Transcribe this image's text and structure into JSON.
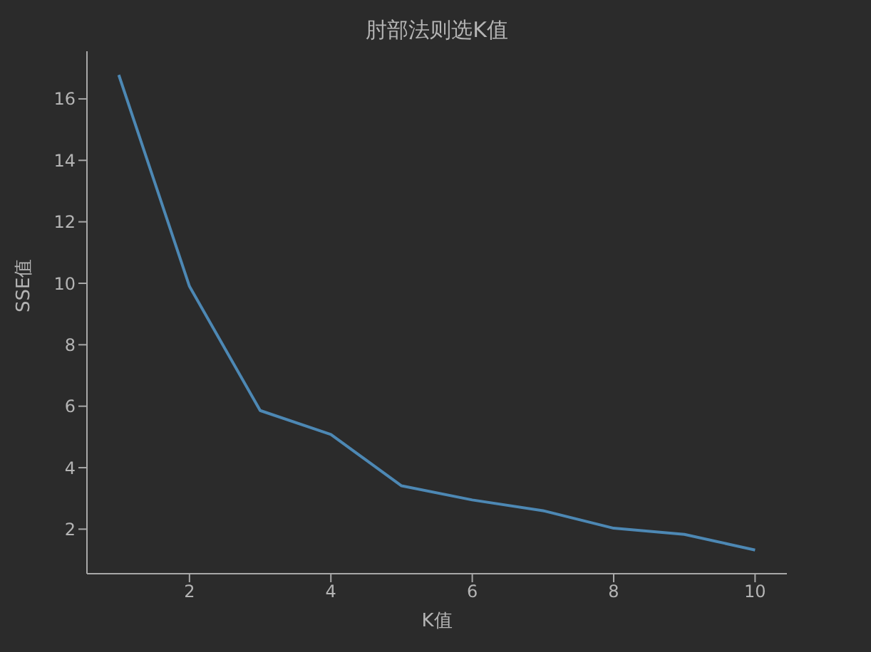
{
  "chart_data": {
    "type": "line",
    "title": "肘部法则选K值",
    "xlabel": "K值",
    "ylabel": "SSE值",
    "x": [
      1,
      2,
      3,
      4,
      5,
      6,
      7,
      8,
      9,
      10
    ],
    "series": [
      {
        "color": "#4d88b4",
        "values": [
          16.78,
          9.9,
          5.86,
          5.08,
          3.41,
          2.95,
          2.6,
          2.03,
          1.83,
          1.32
        ]
      }
    ],
    "xlim": [
      0.55,
      10.45
    ],
    "xticks": [
      2,
      4,
      6,
      8,
      10
    ],
    "ylim": [
      0.55,
      17.55
    ],
    "yticks": [
      2,
      4,
      6,
      8,
      10,
      12,
      14,
      16
    ],
    "grid": false,
    "legend": false,
    "marker": "none",
    "line_style": "solid"
  }
}
